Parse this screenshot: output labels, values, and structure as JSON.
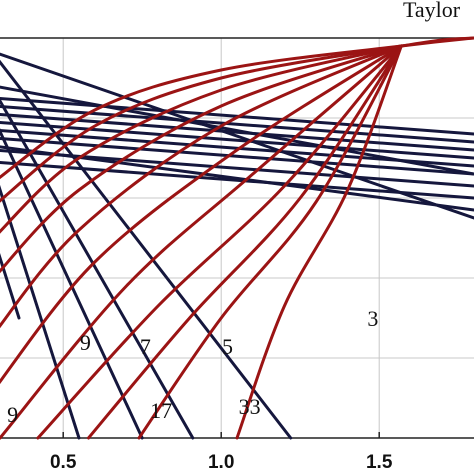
{
  "chart_data": {
    "type": "line",
    "title": "Taylor",
    "xlim": [
      0.3,
      1.8
    ],
    "ylim": [
      0,
      1
    ],
    "grid": true,
    "x_ticks": [
      0.5,
      1.0,
      1.5
    ],
    "x_tick_labels": [
      "0.5",
      "1.0",
      "1.5"
    ],
    "colors": {
      "dark_series": "#15173d",
      "red_series": "#9b1414",
      "grid": "#c8c8c8"
    },
    "dark_series": [
      {
        "points": [
          [
            0.28,
            0.965
          ],
          [
            1.8,
            0.55
          ]
        ]
      },
      {
        "points": [
          [
            0.28,
            0.88
          ],
          [
            1.8,
            0.66
          ]
        ]
      },
      {
        "points": [
          [
            0.28,
            0.85
          ],
          [
            1.8,
            0.76
          ]
        ]
      },
      {
        "points": [
          [
            0.28,
            0.83
          ],
          [
            1.8,
            0.74
          ]
        ]
      },
      {
        "points": [
          [
            0.28,
            0.81
          ],
          [
            1.8,
            0.72
          ]
        ]
      },
      {
        "points": [
          [
            0.28,
            0.79
          ],
          [
            1.8,
            0.7
          ]
        ]
      },
      {
        "points": [
          [
            0.28,
            0.77
          ],
          [
            1.8,
            0.68
          ]
        ]
      },
      {
        "points": [
          [
            0.28,
            0.75
          ],
          [
            1.8,
            0.66
          ]
        ]
      },
      {
        "points": [
          [
            0.28,
            0.72
          ],
          [
            1.8,
            0.63
          ]
        ]
      },
      {
        "points": [
          [
            0.28,
            0.69
          ],
          [
            1.8,
            0.6
          ]
        ]
      },
      {
        "points": [
          [
            0.28,
            0.73
          ],
          [
            1.8,
            0.57
          ]
        ]
      },
      {
        "points": [
          [
            0.28,
            0.96
          ],
          [
            1.22,
            0.0
          ]
        ]
      },
      {
        "points": [
          [
            0.28,
            0.87
          ],
          [
            0.91,
            0.0
          ]
        ]
      },
      {
        "points": [
          [
            0.28,
            0.8
          ],
          [
            0.75,
            0.0
          ]
        ]
      },
      {
        "points": [
          [
            0.28,
            0.67
          ],
          [
            0.55,
            0.0
          ]
        ]
      },
      {
        "points": [
          [
            0.28,
            0.5
          ],
          [
            0.36,
            0.3
          ]
        ]
      }
    ],
    "red_series": [
      {
        "points": [
          [
            0.28,
            0.64
          ],
          [
            0.6,
            0.82
          ],
          [
            1.0,
            0.92
          ],
          [
            1.57,
            0.98
          ],
          [
            1.8,
            1.0
          ]
        ]
      },
      {
        "points": [
          [
            0.28,
            0.58
          ],
          [
            0.6,
            0.78
          ],
          [
            1.0,
            0.9
          ],
          [
            1.57,
            0.98
          ]
        ]
      },
      {
        "points": [
          [
            0.28,
            0.5
          ],
          [
            0.55,
            0.7
          ],
          [
            1.0,
            0.87
          ],
          [
            1.57,
            0.98
          ]
        ]
      },
      {
        "points": [
          [
            0.28,
            0.4
          ],
          [
            0.55,
            0.62
          ],
          [
            1.0,
            0.83
          ],
          [
            1.57,
            0.98
          ]
        ]
      },
      {
        "points": [
          [
            0.28,
            0.26
          ],
          [
            0.55,
            0.52
          ],
          [
            1.0,
            0.78
          ],
          [
            1.57,
            0.98
          ]
        ]
      },
      {
        "points": [
          [
            0.28,
            0.12
          ],
          [
            0.6,
            0.44
          ],
          [
            1.05,
            0.72
          ],
          [
            1.57,
            0.98
          ]
        ]
      },
      {
        "points": [
          [
            0.3,
            0.0
          ],
          [
            0.7,
            0.38
          ],
          [
            1.1,
            0.66
          ],
          [
            1.57,
            0.98
          ]
        ]
      },
      {
        "points": [
          [
            0.42,
            0.0
          ],
          [
            0.8,
            0.33
          ],
          [
            1.2,
            0.63
          ],
          [
            1.57,
            0.98
          ]
        ]
      },
      {
        "points": [
          [
            0.58,
            0.0
          ],
          [
            0.9,
            0.3
          ],
          [
            1.25,
            0.6
          ],
          [
            1.57,
            0.98
          ]
        ]
      },
      {
        "points": [
          [
            0.74,
            0.0
          ],
          [
            1.0,
            0.3
          ],
          [
            1.3,
            0.59
          ],
          [
            1.57,
            0.98
          ]
        ]
      },
      {
        "points": [
          [
            1.05,
            0.0
          ],
          [
            1.2,
            0.33
          ],
          [
            1.4,
            0.62
          ],
          [
            1.57,
            0.98
          ]
        ]
      },
      {
        "points": [
          [
            1.57,
            0.98
          ],
          [
            1.7,
            0.995
          ],
          [
            1.8,
            1.0
          ]
        ]
      }
    ],
    "annotations": [
      {
        "text": "3",
        "x": 1.48,
        "y": 0.28
      },
      {
        "text": "5",
        "x": 1.02,
        "y": 0.21
      },
      {
        "text": "7",
        "x": 0.76,
        "y": 0.21
      },
      {
        "text": "9",
        "x": 0.57,
        "y": 0.22
      },
      {
        "text": "9",
        "x": 0.34,
        "y": 0.04
      },
      {
        "text": "17",
        "x": 0.81,
        "y": 0.05
      },
      {
        "text": "33",
        "x": 1.09,
        "y": 0.06
      }
    ]
  }
}
